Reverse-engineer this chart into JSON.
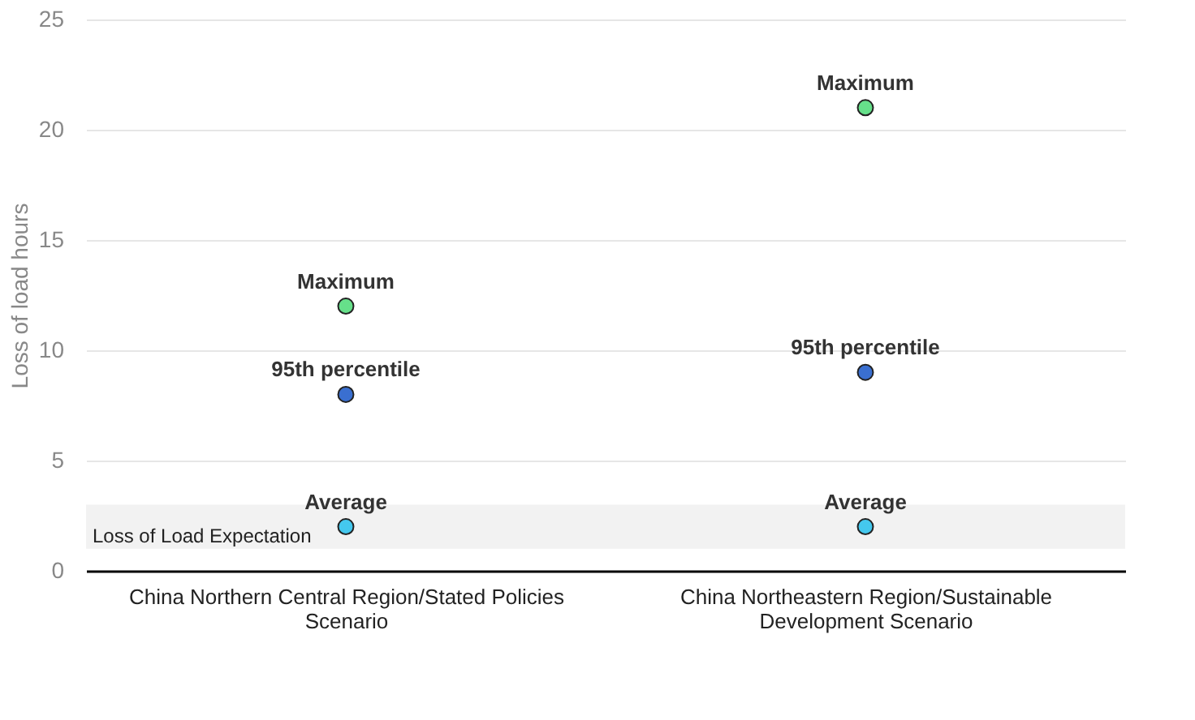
{
  "chart_data": {
    "type": "scatter",
    "ylabel": "Loss of load hours",
    "categories": [
      "China Northern Central Region/Stated Policies Scenario",
      "China Northeastern Region/Sustainable Development Scenario"
    ],
    "series": [
      {
        "name": "Maximum",
        "color": "#66e08a",
        "values": [
          12,
          21
        ]
      },
      {
        "name": "95th percentile",
        "color": "#3a6fd0",
        "values": [
          8,
          9
        ]
      },
      {
        "name": "Average",
        "color": "#44c8ee",
        "values": [
          2,
          2
        ]
      }
    ],
    "bands": [
      {
        "axis": "y",
        "from": 1,
        "to": 3,
        "label": "Loss of Load Expectation",
        "color": "#f2f2f2"
      }
    ],
    "ylim": [
      0,
      25
    ],
    "yticks": [
      0,
      5,
      10,
      15,
      20,
      25
    ],
    "grid": "y",
    "marker": "circle",
    "legend": false
  }
}
